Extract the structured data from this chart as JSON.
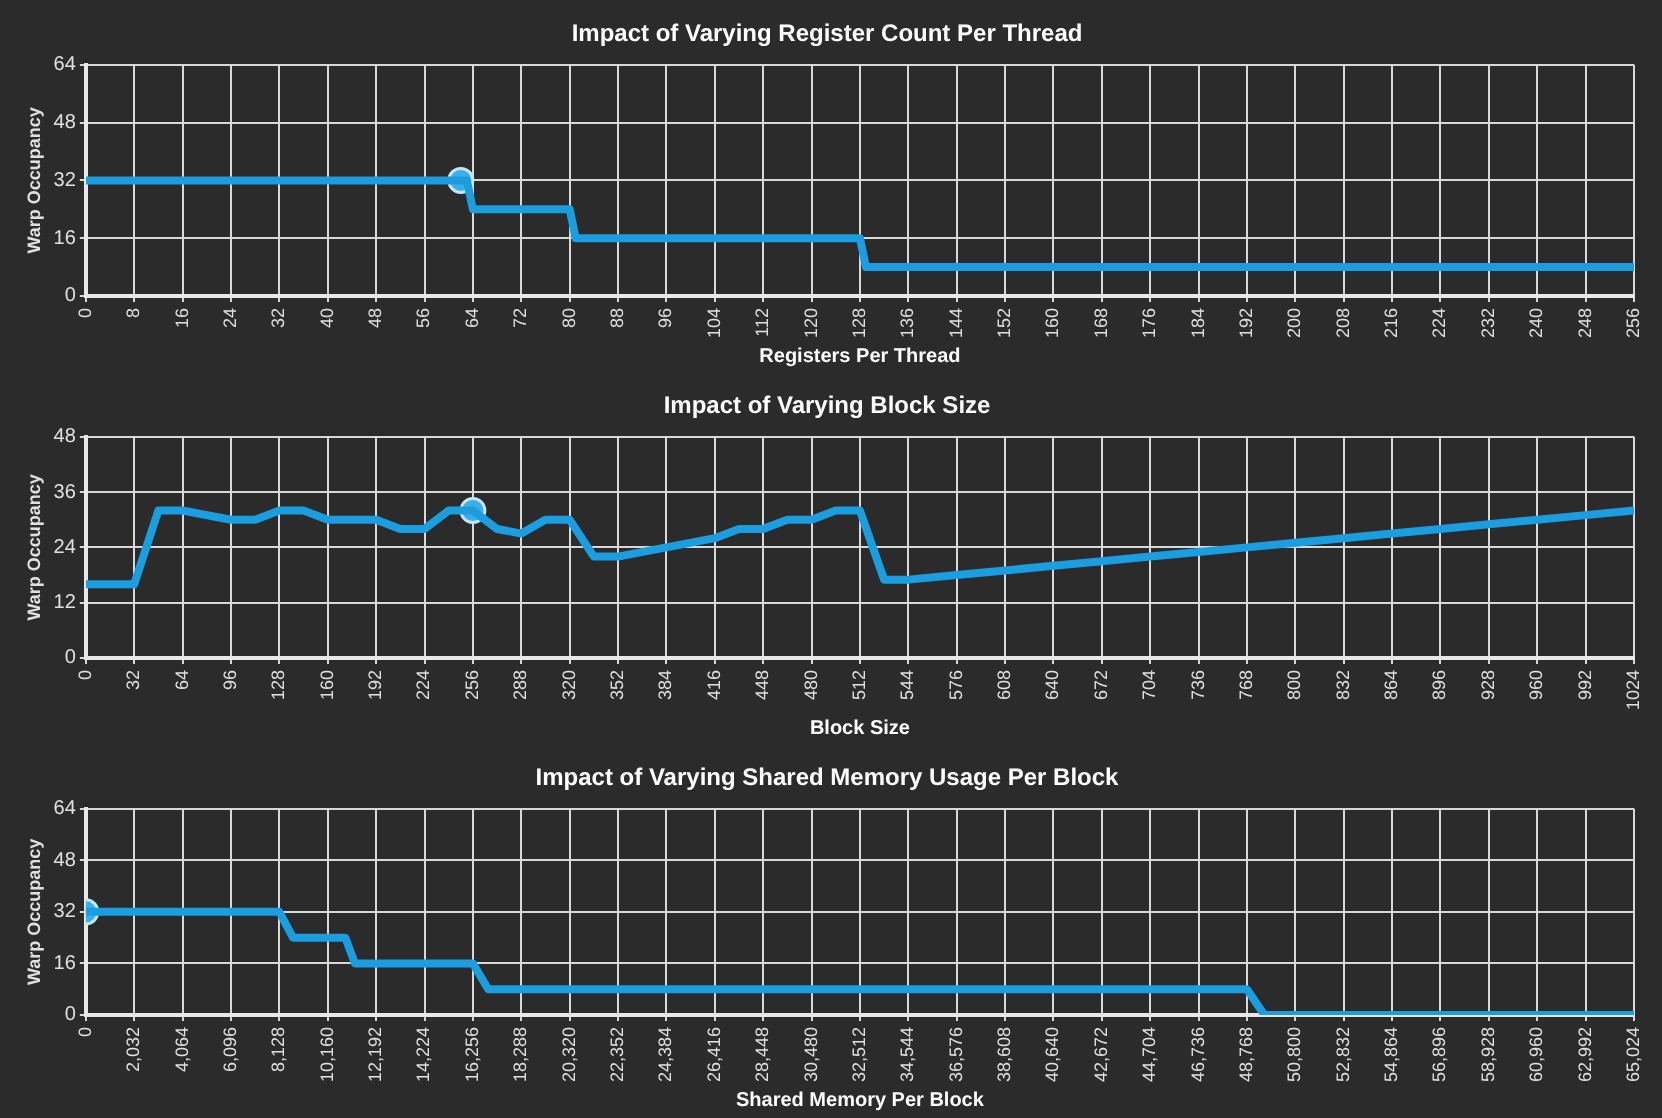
{
  "chart_data": [
    {
      "type": "line",
      "title": "Impact of Varying Register Count Per Thread",
      "xlabel": "Registers Per Thread",
      "ylabel": "Warp Occupancy",
      "xlim": [
        0,
        256
      ],
      "xticks": [
        0,
        8,
        16,
        24,
        32,
        40,
        48,
        56,
        64,
        72,
        80,
        88,
        96,
        104,
        112,
        120,
        128,
        136,
        144,
        152,
        160,
        168,
        176,
        184,
        192,
        200,
        208,
        216,
        224,
        232,
        240,
        248,
        256
      ],
      "ylim": [
        0,
        64
      ],
      "yticks": [
        0,
        16,
        32,
        48,
        64
      ],
      "grid": true,
      "legend": false,
      "series": [
        {
          "color": "#1a9ee0",
          "marker": "none",
          "x": [
            0,
            63,
            64,
            80,
            81,
            128,
            129,
            256
          ],
          "values": [
            32,
            32,
            24,
            24,
            16,
            16,
            8,
            8
          ]
        },
        {
          "type": "scatter",
          "color": "#39aee8",
          "marker": "circle",
          "x": [
            62
          ],
          "values": [
            32
          ]
        }
      ]
    },
    {
      "type": "line",
      "title": "Impact of Varying Block Size",
      "xlabel": "Block Size",
      "ylabel": "Warp Occupancy",
      "xlim": [
        0,
        1024
      ],
      "xticks": [
        0,
        32,
        64,
        96,
        128,
        160,
        192,
        224,
        256,
        288,
        320,
        352,
        384,
        416,
        448,
        480,
        512,
        544,
        576,
        608,
        640,
        672,
        704,
        736,
        768,
        800,
        832,
        864,
        896,
        928,
        960,
        992,
        1024
      ],
      "ylim": [
        0,
        48
      ],
      "yticks": [
        0,
        12,
        24,
        36,
        48
      ],
      "grid": true,
      "legend": false,
      "series": [
        {
          "color": "#1a9ee0",
          "marker": "none",
          "x": [
            0,
            32,
            48,
            64,
            96,
            112,
            128,
            144,
            160,
            192,
            208,
            224,
            240,
            256,
            272,
            288,
            304,
            320,
            336,
            352,
            384,
            416,
            432,
            448,
            464,
            480,
            496,
            512,
            528,
            544,
            576,
            608,
            640,
            672,
            704,
            736,
            768,
            800,
            832,
            864,
            896,
            928,
            960,
            992,
            1024
          ],
          "values": [
            16,
            16,
            32,
            32,
            30,
            30,
            32,
            32,
            30,
            30,
            28,
            28,
            32,
            32,
            28,
            27,
            30,
            30,
            22,
            22,
            24,
            26,
            28,
            28,
            30,
            30,
            32,
            32,
            17,
            17,
            18,
            19,
            20,
            21,
            22,
            23,
            24,
            25,
            26,
            27,
            28,
            29,
            30,
            31,
            32
          ]
        },
        {
          "type": "scatter",
          "color": "#39aee8",
          "marker": "circle",
          "x": [
            256
          ],
          "values": [
            32
          ]
        }
      ]
    },
    {
      "type": "line",
      "title": "Impact of Varying Shared Memory Usage Per Block",
      "xlabel": "Shared Memory Per Block",
      "ylabel": "Warp Occupancy",
      "xlim": [
        0,
        65024
      ],
      "xticks": [
        0,
        {
          "value": 2032,
          "label": "2,032"
        },
        {
          "value": 4064,
          "label": "4,064"
        },
        {
          "value": 6096,
          "label": "6,096"
        },
        {
          "value": 8128,
          "label": "8,128"
        },
        {
          "value": 10160,
          "label": "10,160"
        },
        {
          "value": 12192,
          "label": "12,192"
        },
        {
          "value": 14224,
          "label": "14,224"
        },
        {
          "value": 16256,
          "label": "16,256"
        },
        {
          "value": 18288,
          "label": "18,288"
        },
        {
          "value": 20320,
          "label": "20,320"
        },
        {
          "value": 22352,
          "label": "22,352"
        },
        {
          "value": 24384,
          "label": "24,384"
        },
        {
          "value": 26416,
          "label": "26,416"
        },
        {
          "value": 28448,
          "label": "28,448"
        },
        {
          "value": 30480,
          "label": "30,480"
        },
        {
          "value": 32512,
          "label": "32,512"
        },
        {
          "value": 34544,
          "label": "34,544"
        },
        {
          "value": 36576,
          "label": "36,576"
        },
        {
          "value": 38608,
          "label": "38,608"
        },
        {
          "value": 40640,
          "label": "40,640"
        },
        {
          "value": 42672,
          "label": "42,672"
        },
        {
          "value": 44704,
          "label": "44,704"
        },
        {
          "value": 46736,
          "label": "46,736"
        },
        {
          "value": 48768,
          "label": "48,768"
        },
        {
          "value": 50800,
          "label": "50,800"
        },
        {
          "value": 52832,
          "label": "52,832"
        },
        {
          "value": 54864,
          "label": "54,864"
        },
        {
          "value": 56896,
          "label": "56,896"
        },
        {
          "value": 58928,
          "label": "58,928"
        },
        {
          "value": 60960,
          "label": "60,960"
        },
        {
          "value": 62992,
          "label": "62,992"
        },
        {
          "value": 65024,
          "label": "65,024"
        }
      ],
      "ylim": [
        0,
        64
      ],
      "yticks": [
        0,
        16,
        32,
        48,
        64
      ],
      "grid": true,
      "legend": false,
      "series": [
        {
          "color": "#1a9ee0",
          "marker": "none",
          "x": [
            0,
            8128,
            8700,
            10900,
            11300,
            16256,
            16900,
            48768,
            49500,
            65024
          ],
          "values": [
            32,
            32,
            24,
            24,
            16,
            16,
            8,
            8,
            0,
            0
          ]
        },
        {
          "type": "scatter",
          "color": "#39aee8",
          "marker": "circle",
          "x": [
            0
          ],
          "values": [
            32
          ]
        }
      ]
    }
  ]
}
